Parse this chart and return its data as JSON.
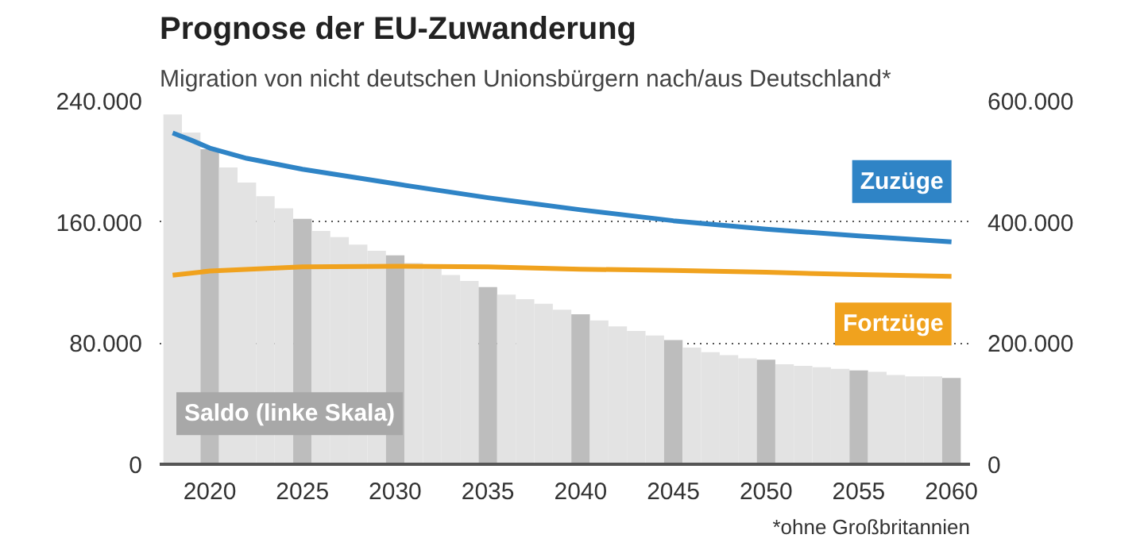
{
  "chart_data": {
    "type": "bar",
    "title": "Prognose der EU-Zuwanderung",
    "subtitle": "Migration von nicht deutschen Unionsbürgern nach/aus Deutschland*",
    "annotations": [
      "*ohne Großbritannien"
    ],
    "xlim": [
      2017.3,
      2061
    ],
    "xticks": [
      2020,
      2025,
      2030,
      2035,
      2040,
      2045,
      2050,
      2055,
      2060
    ],
    "ylim": [
      0,
      240000
    ],
    "yticks": [
      {
        "value": 0,
        "label": "0"
      },
      {
        "value": 80000,
        "label": "80.000"
      },
      {
        "value": 160000,
        "label": "160.000"
      },
      {
        "value": 240000,
        "label": "240.000"
      }
    ],
    "y2lim": [
      0,
      600000
    ],
    "y2ticks": [
      {
        "value": 0,
        "label": "0"
      },
      {
        "value": 200000,
        "label": "200.000"
      },
      {
        "value": 400000,
        "label": "400.000"
      },
      {
        "value": 600000,
        "label": "600.000"
      }
    ],
    "grid": "y",
    "series": [
      {
        "name": "Saldo (linke Skala)",
        "x": [
          2018,
          2019,
          2020,
          2021,
          2022,
          2023,
          2024,
          2025,
          2026,
          2027,
          2028,
          2029,
          2030,
          2031,
          2032,
          2033,
          2034,
          2035,
          2036,
          2037,
          2038,
          2039,
          2040,
          2041,
          2042,
          2043,
          2044,
          2045,
          2046,
          2047,
          2048,
          2049,
          2050,
          2051,
          2052,
          2053,
          2054,
          2055,
          2056,
          2057,
          2058,
          2059,
          2060
        ],
        "values": [
          231000,
          219000,
          208000,
          196000,
          186000,
          177000,
          169000,
          162000,
          154000,
          150000,
          145000,
          141000,
          138000,
          133000,
          129000,
          125000,
          121000,
          117000,
          112000,
          109000,
          106000,
          102000,
          99000,
          95000,
          91000,
          88000,
          85000,
          82000,
          77000,
          74000,
          72000,
          70000,
          69000,
          66000,
          65000,
          64000,
          63000,
          62000,
          61000,
          59000,
          58000,
          58000,
          57000
        ],
        "colors": [
          "#e3e3e3",
          "#e3e3e3",
          "#bdbdbd",
          "#e3e3e3",
          "#e3e3e3",
          "#e3e3e3",
          "#e3e3e3",
          "#bdbdbd",
          "#e3e3e3",
          "#e3e3e3",
          "#e3e3e3",
          "#e3e3e3",
          "#bdbdbd",
          "#e3e3e3",
          "#e3e3e3",
          "#e3e3e3",
          "#e3e3e3",
          "#bdbdbd",
          "#e3e3e3",
          "#e3e3e3",
          "#e3e3e3",
          "#e3e3e3",
          "#bdbdbd",
          "#e3e3e3",
          "#e3e3e3",
          "#e3e3e3",
          "#e3e3e3",
          "#bdbdbd",
          "#e3e3e3",
          "#e3e3e3",
          "#e3e3e3",
          "#e3e3e3",
          "#bdbdbd",
          "#e3e3e3",
          "#e3e3e3",
          "#e3e3e3",
          "#e3e3e3",
          "#bdbdbd",
          "#e3e3e3",
          "#e3e3e3",
          "#e3e3e3",
          "#e3e3e3",
          "#bdbdbd"
        ],
        "color": "#a8a8a8"
      },
      {
        "name": "Zuzüge",
        "type": "line",
        "axis": "y2",
        "color": "#2f84c6",
        "x": [
          2018,
          2019,
          2020,
          2022,
          2025,
          2030,
          2035,
          2040,
          2045,
          2050,
          2055,
          2060
        ],
        "values": [
          547000,
          535000,
          522000,
          505000,
          487000,
          463000,
          440000,
          420000,
          402000,
          388000,
          377000,
          367000
        ]
      },
      {
        "name": "Fortzüge",
        "type": "line",
        "axis": "y2",
        "color": "#f0a21e",
        "x": [
          2018,
          2020,
          2025,
          2030,
          2035,
          2040,
          2045,
          2050,
          2055,
          2060
        ],
        "values": [
          312000,
          319000,
          326000,
          327000,
          326000,
          322000,
          320000,
          317000,
          313000,
          310000
        ]
      }
    ]
  }
}
